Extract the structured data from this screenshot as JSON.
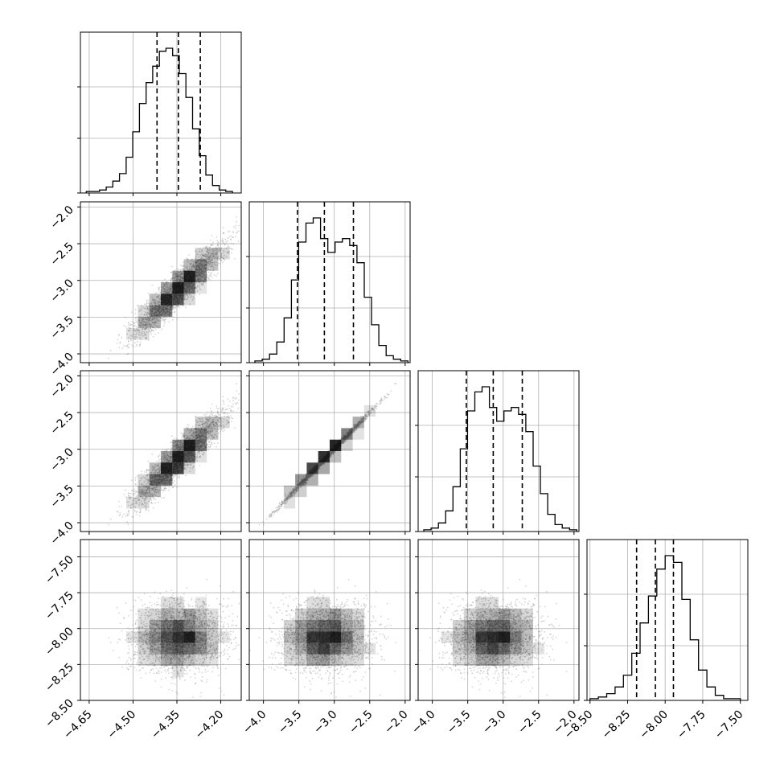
{
  "chart_data": {
    "type": "corner",
    "parameters": 4,
    "grid": true,
    "quantile_lines": "dashed",
    "marginals": [
      {
        "xlim": [
          -4.68,
          -4.13
        ],
        "bins_start": -4.66,
        "bins_end": -4.16,
        "counts": [
          1,
          1,
          2,
          4,
          8,
          13,
          24,
          41,
          60,
          74,
          85,
          95,
          97,
          92,
          80,
          64,
          43,
          25,
          12,
          5,
          2,
          1
        ],
        "quantiles": [
          -4.418,
          -4.345,
          -4.27
        ]
      },
      {
        "xlim": [
          -4.2,
          -1.93
        ],
        "bins_start": -4.12,
        "bins_end": -1.96,
        "counts": [
          1,
          2,
          5,
          12,
          26,
          48,
          70,
          81,
          84,
          72,
          64,
          70,
          72,
          68,
          58,
          38,
          22,
          10,
          4,
          2,
          1
        ],
        "quantiles": [
          -3.52,
          -3.14,
          -2.73
        ]
      },
      {
        "xlim": [
          -4.2,
          -1.93
        ],
        "bins_start": -4.12,
        "bins_end": -1.96,
        "counts": [
          1,
          2,
          5,
          12,
          26,
          48,
          70,
          81,
          84,
          72,
          64,
          70,
          72,
          68,
          58,
          38,
          22,
          10,
          4,
          2,
          1
        ],
        "quantiles": [
          -3.52,
          -3.14,
          -2.73
        ]
      },
      {
        "xlim": [
          -8.52,
          -7.45
        ],
        "bins_start": -8.5,
        "bins_end": -7.5,
        "counts": [
          1,
          2,
          4,
          8,
          15,
          28,
          46,
          62,
          78,
          86,
          82,
          60,
          36,
          18,
          8,
          3,
          1,
          1
        ],
        "quantiles": [
          -8.19,
          -8.065,
          -7.945
        ]
      }
    ],
    "y_ranges": {
      "1": [
        -4.12,
        -1.93
      ],
      "2": [
        -4.12,
        -1.93
      ],
      "3": [
        -8.5,
        -7.38
      ]
    },
    "x_tick_labels": [
      [
        "−4.65",
        "−4.50",
        "−4.35",
        "−4.20"
      ],
      [
        "−4.0",
        "−3.5",
        "−3.0",
        "−2.5",
        "−2.0"
      ],
      [
        "−4.0",
        "−3.5",
        "−3.0",
        "−2.5",
        "−2.0"
      ],
      [
        "−8.50",
        "−8.25",
        "−8.00",
        "−7.75",
        "−7.50"
      ]
    ],
    "x_tick_values": [
      [
        -4.65,
        -4.5,
        -4.35,
        -4.2
      ],
      [
        -4.0,
        -3.5,
        -3.0,
        -2.5,
        -2.0
      ],
      [
        -4.0,
        -3.5,
        -3.0,
        -2.5,
        -2.0
      ],
      [
        -8.5,
        -8.25,
        -8.0,
        -7.75,
        -7.5
      ]
    ],
    "y_tick_labels": {
      "1": [
        "−2.0",
        "−2.5",
        "−3.0",
        "−3.5",
        "−4.0"
      ],
      "2": [
        "−2.0",
        "−2.5",
        "−3.0",
        "−3.5",
        "−4.0"
      ],
      "3": [
        "−7.50",
        "−7.75",
        "−8.00",
        "−8.25",
        "−8.50"
      ]
    },
    "y_tick_values": {
      "1": [
        -2.0,
        -2.5,
        -3.0,
        -3.5,
        -4.0
      ],
      "2": [
        -2.0,
        -2.5,
        -3.0,
        -3.5,
        -4.0
      ],
      "3": [
        -7.5,
        -7.75,
        -8.0,
        -8.25,
        -8.5
      ]
    },
    "correlation_model": {
      "means": [
        -4.345,
        -3.13,
        -3.13,
        -8.06
      ],
      "sds": [
        0.075,
        0.36,
        0.36,
        0.12
      ],
      "corr": [
        [
          1,
          0.94,
          0.94,
          0.0
        ],
        [
          0.94,
          1,
          0.995,
          0.0
        ],
        [
          0.94,
          0.995,
          1,
          0.0
        ],
        [
          0.0,
          0.0,
          0.0,
          1
        ]
      ]
    },
    "colors": {
      "line": "#000000",
      "grid": "#b0b0b0",
      "points": "#888888",
      "density": "#000000"
    }
  }
}
